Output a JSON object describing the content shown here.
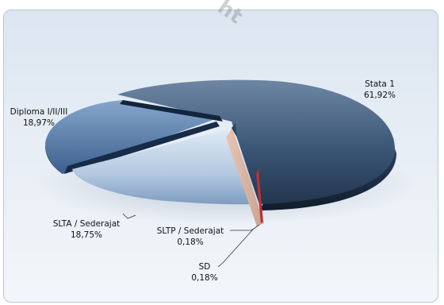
{
  "watermark": "ht",
  "chart_data": {
    "type": "pie",
    "style": "3d-exploded",
    "slices": [
      {
        "name": "Stata 1",
        "value_label": "61,92%",
        "value": 61.92,
        "color": "#34506e"
      },
      {
        "name": "SLTP / Sederajat",
        "value_label": "0,18%",
        "value": 0.18,
        "color": "#c96b6b"
      },
      {
        "name": "SD",
        "value_label": "0,18%",
        "value": 0.18,
        "color": "#e6c2b2"
      },
      {
        "name": "SLTA / Sederajat",
        "value_label": "18,75%",
        "value": 18.75,
        "color": "#a6bfdc"
      },
      {
        "name": "Diploma I/II/III",
        "value_label": "18,97%",
        "value": 18.97,
        "color": "#5277a3"
      }
    ]
  }
}
